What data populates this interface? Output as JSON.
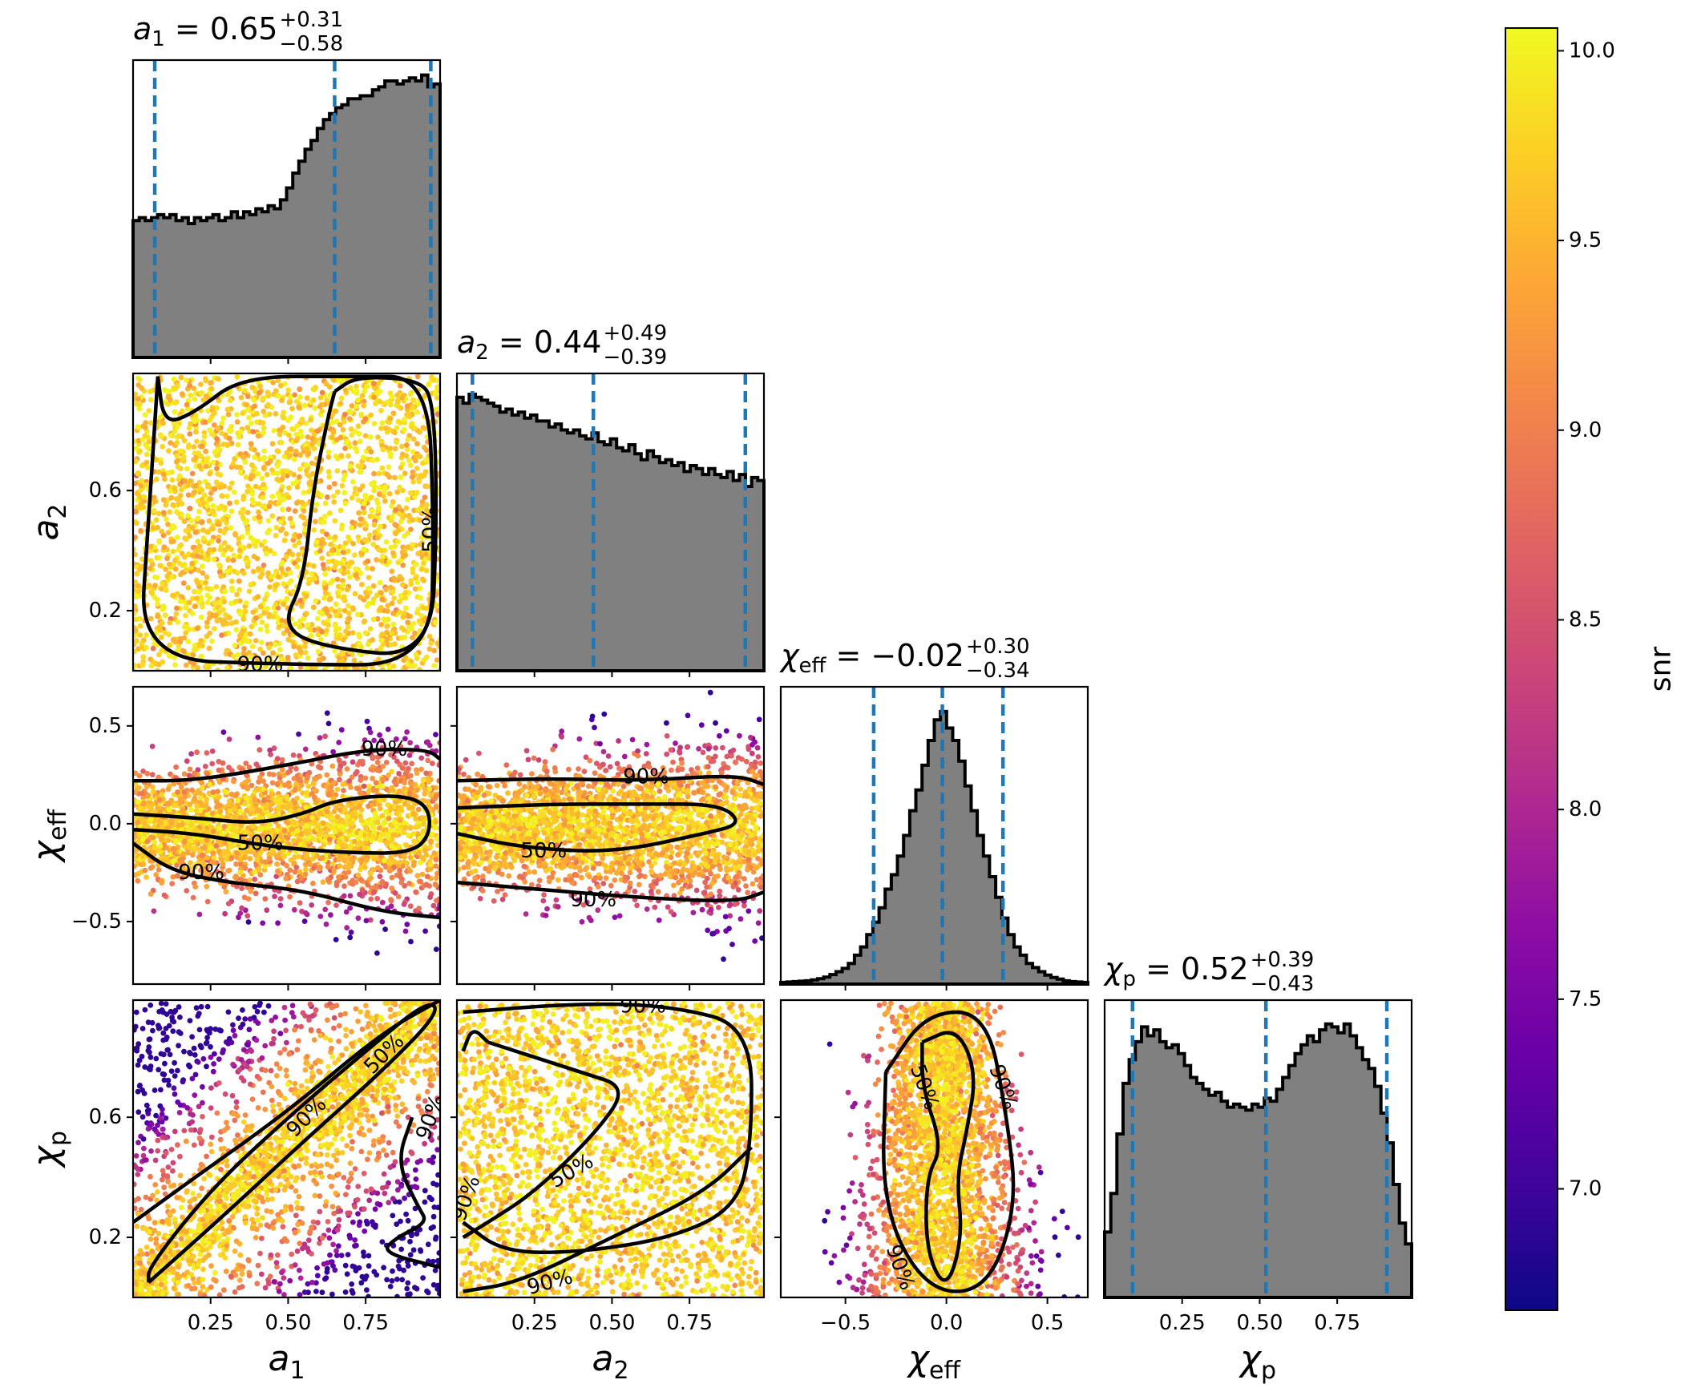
{
  "colors": {
    "histogram_fill": "#808080",
    "histogram_edge": "#000000",
    "quantile_line": "#1f77b4",
    "contour": "#000000",
    "colormap": "plasma"
  },
  "chart_data": {
    "type": "scatter",
    "subtype": "corner-plot",
    "parameters": [
      {
        "key": "a1",
        "symbol": "a",
        "sub": "1"
      },
      {
        "key": "a2",
        "symbol": "a",
        "sub": "2"
      },
      {
        "key": "chi_eff",
        "symbol": "χ",
        "sub": "eff"
      },
      {
        "key": "chi_p",
        "symbol": "χ",
        "sub": "p"
      }
    ],
    "ranges": {
      "a1": [
        0.0,
        0.99
      ],
      "a2": [
        0.0,
        0.99
      ],
      "chi_eff": [
        -0.82,
        0.7
      ],
      "chi_p": [
        0.0,
        0.99
      ]
    },
    "ticks": {
      "a1": [
        0.25,
        0.5,
        0.75
      ],
      "a2": [
        0.25,
        0.5,
        0.75
      ],
      "chi_eff": [
        -0.5,
        0.0,
        0.5
      ],
      "chi_p": [
        0.25,
        0.5,
        0.75
      ]
    },
    "tick_labels": {
      "a1": [
        "0.25",
        "0.50",
        "0.75"
      ],
      "a2": [
        "0.25",
        "0.50",
        "0.75"
      ],
      "chi_eff": [
        "−0.5",
        "0.0",
        "0.5"
      ],
      "chi_p": [
        "0.25",
        "0.50",
        "0.75"
      ]
    },
    "y_ticks": {
      "a2": [
        0.2,
        0.6
      ],
      "chi_eff": [
        -0.5,
        0.0,
        0.5
      ],
      "chi_p": [
        0.2,
        0.6
      ]
    },
    "y_tick_labels": {
      "a2": [
        "0.2",
        "0.6"
      ],
      "chi_eff": [
        "−0.5",
        "0.0",
        "0.5"
      ],
      "chi_p": [
        "0.2",
        "0.6"
      ]
    },
    "titles": [
      {
        "key": "a1",
        "symbol": "a",
        "sub": "1",
        "median": "0.65",
        "plus": "+0.31",
        "minus": "−0.58"
      },
      {
        "key": "a2",
        "symbol": "a",
        "sub": "2",
        "median": "0.44",
        "plus": "+0.49",
        "minus": "−0.39"
      },
      {
        "key": "chi_eff",
        "symbol": "χ",
        "sub": "eff",
        "median": "−0.02",
        "plus": "+0.30",
        "minus": "−0.34"
      },
      {
        "key": "chi_p",
        "symbol": "χ",
        "sub": "p",
        "median": "0.52",
        "plus": "+0.39",
        "minus": "−0.43"
      }
    ],
    "quantiles": {
      "a1": [
        0.07,
        0.65,
        0.96
      ],
      "a2": [
        0.05,
        0.44,
        0.93
      ],
      "chi_eff": [
        -0.36,
        -0.02,
        0.28
      ],
      "chi_p": [
        0.09,
        0.52,
        0.91
      ]
    },
    "histograms": {
      "a1": [
        0.46,
        0.47,
        0.46,
        0.47,
        0.48,
        0.47,
        0.48,
        0.46,
        0.47,
        0.45,
        0.47,
        0.46,
        0.47,
        0.48,
        0.46,
        0.47,
        0.49,
        0.47,
        0.49,
        0.48,
        0.5,
        0.49,
        0.51,
        0.5,
        0.53,
        0.57,
        0.62,
        0.66,
        0.7,
        0.73,
        0.77,
        0.8,
        0.82,
        0.84,
        0.85,
        0.87,
        0.87,
        0.88,
        0.88,
        0.9,
        0.91,
        0.93,
        0.93,
        0.92,
        0.93,
        0.94,
        0.93,
        0.95,
        0.91,
        0.92
      ],
      "a2": [
        0.92,
        0.9,
        0.93,
        0.92,
        0.91,
        0.9,
        0.89,
        0.87,
        0.88,
        0.86,
        0.87,
        0.85,
        0.86,
        0.84,
        0.84,
        0.82,
        0.83,
        0.81,
        0.8,
        0.81,
        0.79,
        0.78,
        0.8,
        0.77,
        0.76,
        0.78,
        0.75,
        0.74,
        0.76,
        0.73,
        0.71,
        0.74,
        0.72,
        0.7,
        0.71,
        0.69,
        0.7,
        0.67,
        0.69,
        0.68,
        0.66,
        0.68,
        0.66,
        0.65,
        0.67,
        0.64,
        0.66,
        0.62,
        0.65,
        0.64
      ],
      "chi_eff": [
        0.004,
        0.005,
        0.006,
        0.007,
        0.008,
        0.01,
        0.013,
        0.017,
        0.023,
        0.03,
        0.038,
        0.05,
        0.07,
        0.09,
        0.12,
        0.15,
        0.185,
        0.23,
        0.265,
        0.31,
        0.36,
        0.42,
        0.47,
        0.53,
        0.59,
        0.64,
        0.66,
        0.62,
        0.59,
        0.54,
        0.48,
        0.42,
        0.36,
        0.31,
        0.26,
        0.21,
        0.16,
        0.12,
        0.09,
        0.07,
        0.05,
        0.04,
        0.03,
        0.022,
        0.016,
        0.012,
        0.008,
        0.006,
        0.005,
        0.004
      ],
      "chi_p": [
        0.22,
        0.35,
        0.55,
        0.72,
        0.8,
        0.86,
        0.91,
        0.88,
        0.9,
        0.86,
        0.84,
        0.85,
        0.82,
        0.78,
        0.74,
        0.72,
        0.7,
        0.68,
        0.69,
        0.66,
        0.64,
        0.65,
        0.64,
        0.63,
        0.65,
        0.64,
        0.67,
        0.66,
        0.7,
        0.74,
        0.78,
        0.82,
        0.85,
        0.88,
        0.86,
        0.9,
        0.92,
        0.91,
        0.89,
        0.92,
        0.88,
        0.84,
        0.8,
        0.77,
        0.71,
        0.62,
        0.52,
        0.38,
        0.25,
        0.18
      ]
    },
    "hist_ymax": {
      "a1": 1.0,
      "a2": 1.0,
      "chi_eff": 0.72,
      "chi_p": 1.0
    },
    "contour_labels": {
      "a2_vs_a1": [
        "50%",
        "90%"
      ],
      "chi_eff_vs_a1": [
        "90%",
        "50%",
        "90%"
      ],
      "chi_eff_vs_a2": [
        "90%",
        "50%",
        "90%"
      ],
      "chi_p_vs_a1": [
        "90%",
        "50%",
        "90%"
      ],
      "chi_p_vs_a2": [
        "90%",
        "50%",
        "90%",
        "90%"
      ],
      "chi_p_vs_chi_eff": [
        "50%",
        "90%",
        "90%"
      ]
    },
    "colorbar": {
      "label": "snr",
      "min": 6.68,
      "max": 10.06,
      "ticks": [
        7.0,
        7.5,
        8.0,
        8.5,
        9.0,
        9.5,
        10.0
      ],
      "tick_labels": [
        "7.0",
        "7.5",
        "8.0",
        "8.5",
        "9.0",
        "9.5",
        "10.0"
      ]
    }
  }
}
